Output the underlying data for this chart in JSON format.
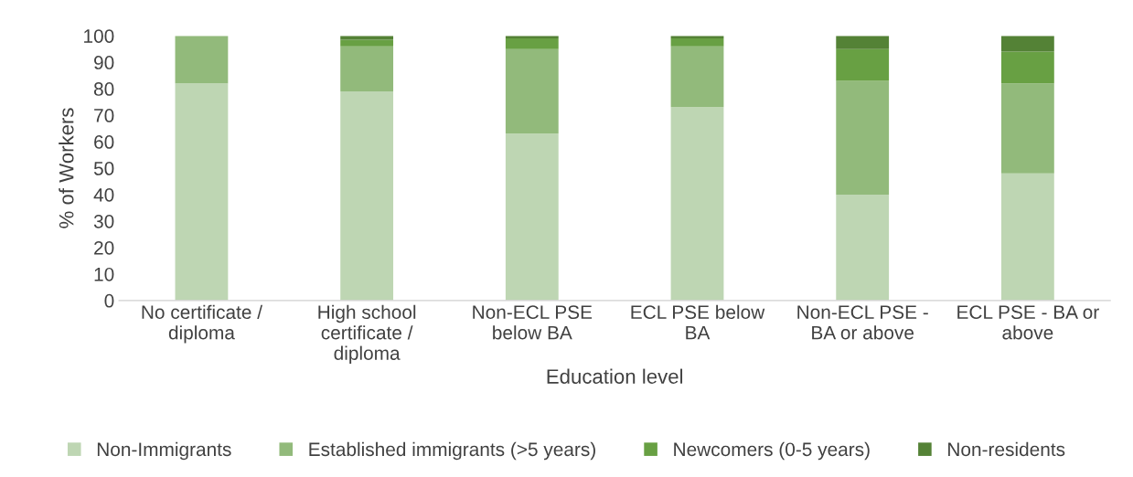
{
  "chart_data": {
    "type": "bar",
    "stacked": true,
    "xlabel": "Education level",
    "ylabel": "% of Workers",
    "categories": [
      "No certificate / diploma",
      "High school certificate / diploma",
      "Non-ECL PSE below BA",
      "ECL PSE below BA",
      "Non-ECL PSE - BA or above",
      "ECL PSE - BA or above"
    ],
    "series": [
      {
        "name": "Non-Immigrants",
        "color": "#bed6b3",
        "values": [
          82,
          79,
          63,
          73,
          40,
          48
        ]
      },
      {
        "name": "Established immigrants (>5 years)",
        "color": "#92ba7b",
        "values": [
          18,
          17,
          32,
          23,
          43,
          34
        ]
      },
      {
        "name": "Newcomers (0-5 years)",
        "color": "#68a043",
        "values": [
          0,
          2.5,
          4,
          3,
          12,
          12
        ]
      },
      {
        "name": "Non-residents",
        "color": "#548236",
        "values": [
          0,
          1.5,
          1,
          1,
          5,
          6
        ]
      }
    ],
    "ylim": [
      0,
      100
    ],
    "yticks": [
      0,
      10,
      20,
      30,
      40,
      50,
      60,
      70,
      80,
      90,
      100
    ],
    "grid": false,
    "legend": "bottom"
  }
}
